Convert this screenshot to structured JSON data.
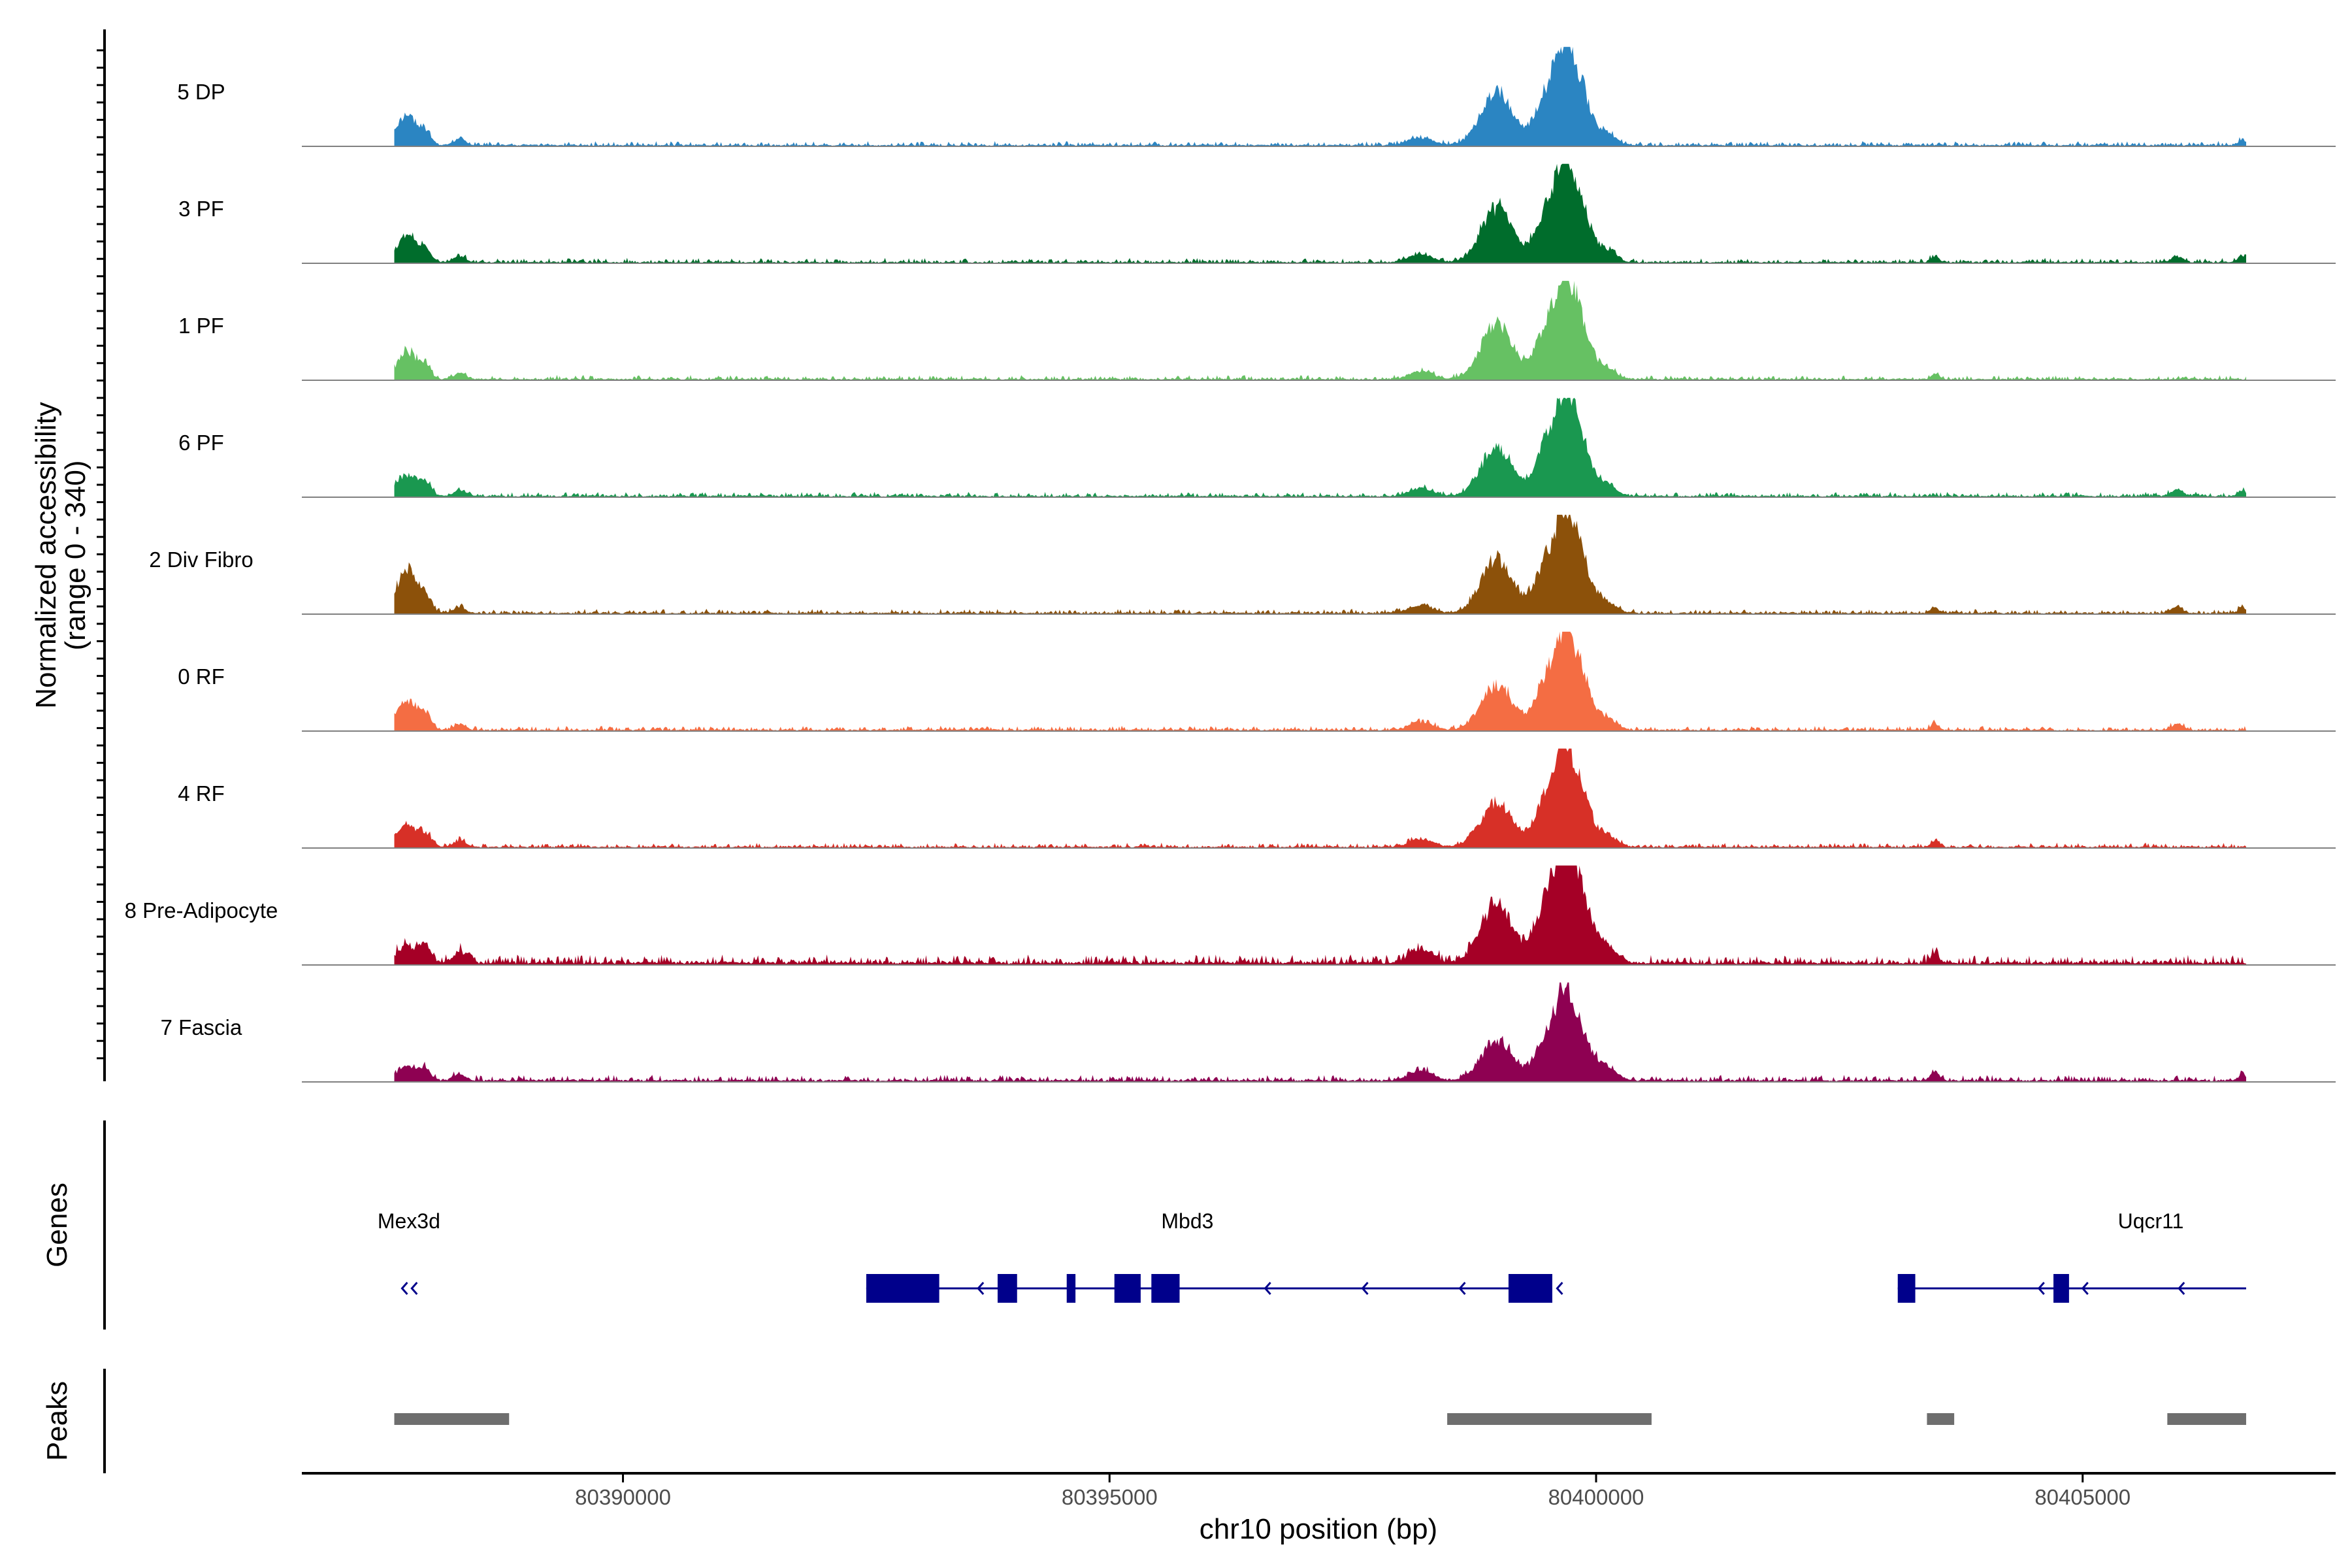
{
  "chart_data": {
    "type": "area",
    "title": "",
    "ylabel_line1": "Normalized accessibility",
    "ylabel_line2": "(range 0 - 340)",
    "y_range": [
      0,
      340
    ],
    "xlabel": "chr10 position (bp)",
    "xlim": [
      80386700,
      80407600
    ],
    "xticks": [
      {
        "value": 80390000,
        "label": "80390000"
      },
      {
        "value": 80395000,
        "label": "80395000"
      },
      {
        "value": 80400000,
        "label": "80400000"
      },
      {
        "value": 80405000,
        "label": "80405000"
      }
    ],
    "coverage_extent": [
      80387650,
      80406680
    ],
    "tracks": [
      {
        "name": "5 DP",
        "color": "#2b85c2",
        "noise": 0.03,
        "bumps": [
          [
            80387780,
            100,
            0.3
          ],
          [
            80387970,
            60,
            0.12
          ],
          [
            80388320,
            60,
            0.06
          ],
          [
            80398200,
            120,
            0.08
          ],
          [
            80398980,
            160,
            0.55
          ],
          [
            80399550,
            140,
            0.65
          ],
          [
            80399680,
            70,
            0.4
          ],
          [
            80399820,
            110,
            0.6
          ],
          [
            80400100,
            100,
            0.12
          ],
          [
            80406640,
            40,
            0.06
          ]
        ]
      },
      {
        "name": "3 PF",
        "color": "#006d2c",
        "noise": 0.03,
        "bumps": [
          [
            80387780,
            100,
            0.28
          ],
          [
            80387970,
            60,
            0.12
          ],
          [
            80388320,
            60,
            0.06
          ],
          [
            80398200,
            120,
            0.08
          ],
          [
            80398980,
            160,
            0.55
          ],
          [
            80399550,
            140,
            0.65
          ],
          [
            80399680,
            70,
            0.4
          ],
          [
            80399820,
            110,
            0.6
          ],
          [
            80400100,
            100,
            0.12
          ],
          [
            80403480,
            40,
            0.06
          ],
          [
            80405970,
            60,
            0.06
          ],
          [
            80406640,
            40,
            0.07
          ]
        ]
      },
      {
        "name": "1 PF",
        "color": "#66c163",
        "noise": 0.03,
        "bumps": [
          [
            80387780,
            100,
            0.28
          ],
          [
            80387970,
            60,
            0.12
          ],
          [
            80388320,
            60,
            0.06
          ],
          [
            80398200,
            120,
            0.08
          ],
          [
            80398980,
            160,
            0.55
          ],
          [
            80399550,
            140,
            0.65
          ],
          [
            80399680,
            70,
            0.4
          ],
          [
            80399820,
            110,
            0.6
          ],
          [
            80400100,
            100,
            0.12
          ],
          [
            80403480,
            40,
            0.06
          ]
        ]
      },
      {
        "name": "6 PF",
        "color": "#1a9850",
        "noise": 0.03,
        "bumps": [
          [
            80387780,
            100,
            0.22
          ],
          [
            80387970,
            60,
            0.12
          ],
          [
            80388320,
            60,
            0.06
          ],
          [
            80398200,
            120,
            0.08
          ],
          [
            80398980,
            160,
            0.5
          ],
          [
            80399550,
            140,
            0.65
          ],
          [
            80399680,
            70,
            0.4
          ],
          [
            80399820,
            110,
            0.6
          ],
          [
            80400100,
            100,
            0.12
          ],
          [
            80405970,
            60,
            0.07
          ],
          [
            80406640,
            40,
            0.06
          ]
        ]
      },
      {
        "name": "2 Div Fibro",
        "color": "#8c510a",
        "noise": 0.03,
        "bumps": [
          [
            80387780,
            100,
            0.45
          ],
          [
            80387970,
            60,
            0.15
          ],
          [
            80388320,
            60,
            0.06
          ],
          [
            80398200,
            120,
            0.08
          ],
          [
            80398980,
            160,
            0.55
          ],
          [
            80399550,
            140,
            0.65
          ],
          [
            80399680,
            70,
            0.4
          ],
          [
            80399820,
            110,
            0.6
          ],
          [
            80400100,
            100,
            0.12
          ],
          [
            80403480,
            40,
            0.06
          ],
          [
            80405970,
            60,
            0.06
          ],
          [
            80406640,
            40,
            0.06
          ]
        ]
      },
      {
        "name": "0 RF",
        "color": "#f46d43",
        "noise": 0.03,
        "bumps": [
          [
            80387780,
            100,
            0.3
          ],
          [
            80387970,
            60,
            0.15
          ],
          [
            80388320,
            60,
            0.06
          ],
          [
            80398200,
            120,
            0.08
          ],
          [
            80398980,
            160,
            0.45
          ],
          [
            80399550,
            140,
            0.65
          ],
          [
            80399680,
            70,
            0.4
          ],
          [
            80399820,
            110,
            0.6
          ],
          [
            80400100,
            100,
            0.12
          ],
          [
            80403480,
            40,
            0.06
          ],
          [
            80405970,
            60,
            0.06
          ]
        ]
      },
      {
        "name": "4 RF",
        "color": "#d73027",
        "noise": 0.03,
        "bumps": [
          [
            80387780,
            100,
            0.22
          ],
          [
            80387970,
            60,
            0.12
          ],
          [
            80388320,
            60,
            0.06
          ],
          [
            80398200,
            120,
            0.08
          ],
          [
            80398980,
            160,
            0.45
          ],
          [
            80399550,
            140,
            0.65
          ],
          [
            80399680,
            70,
            0.4
          ],
          [
            80399820,
            110,
            0.6
          ],
          [
            80400100,
            100,
            0.12
          ],
          [
            80403480,
            40,
            0.06
          ]
        ]
      },
      {
        "name": "8 Pre-Adipocyte",
        "color": "#a50026",
        "noise": 0.06,
        "bumps": [
          [
            80387780,
            100,
            0.18
          ],
          [
            80387970,
            60,
            0.15
          ],
          [
            80388320,
            60,
            0.12
          ],
          [
            80398200,
            120,
            0.14
          ],
          [
            80398980,
            160,
            0.6
          ],
          [
            80399550,
            140,
            0.8
          ],
          [
            80399680,
            70,
            0.55
          ],
          [
            80399820,
            110,
            0.75
          ],
          [
            80400100,
            100,
            0.18
          ],
          [
            80403480,
            40,
            0.1
          ]
        ]
      },
      {
        "name": "7 Fascia",
        "color": "#8e0152",
        "noise": 0.04,
        "bumps": [
          [
            80387780,
            100,
            0.14
          ],
          [
            80387970,
            60,
            0.1
          ],
          [
            80388320,
            60,
            0.06
          ],
          [
            80398200,
            120,
            0.1
          ],
          [
            80398980,
            160,
            0.4
          ],
          [
            80399550,
            140,
            0.55
          ],
          [
            80399680,
            70,
            0.4
          ],
          [
            80399820,
            110,
            0.5
          ],
          [
            80400100,
            100,
            0.14
          ],
          [
            80403480,
            40,
            0.1
          ],
          [
            80406640,
            40,
            0.06
          ]
        ]
      }
    ],
    "genes_track_label": "Genes",
    "gene_color": "#00008b",
    "genes": [
      {
        "name": "Mex3d",
        "label_pos": 80387800,
        "start": 80387700,
        "end": 80387900,
        "strand": "-",
        "line": false,
        "exons": [],
        "arrows": [
          80387730,
          80387830
        ]
      },
      {
        "name": "Mbd3",
        "label_pos": 80395800,
        "start": 80392500,
        "end": 80399550,
        "strand": "-",
        "line": true,
        "exons": [
          [
            80392500,
            80393250
          ],
          [
            80393850,
            80394050
          ],
          [
            80394560,
            80394650
          ],
          [
            80395050,
            80395320
          ],
          [
            80395430,
            80395720
          ],
          [
            80399100,
            80399550
          ]
        ],
        "arrows": [
          80393650,
          80396600,
          80397600,
          80398600,
          80399600
        ]
      },
      {
        "name": "Uqcr11",
        "label_pos": 80405700,
        "start": 80403100,
        "end": 80406680,
        "strand": "-",
        "line": true,
        "exons": [
          [
            80403100,
            80403280
          ],
          [
            80404700,
            80404860
          ]
        ],
        "arrows": [
          80404550,
          80405000,
          80405990
        ]
      }
    ],
    "peaks_track_label": "Peaks",
    "peak_color": "#6e6e6e",
    "peaks": [
      [
        80387650,
        80388830
      ],
      [
        80398470,
        80400570
      ],
      [
        80403400,
        80403680
      ],
      [
        80405870,
        80406680
      ]
    ]
  }
}
